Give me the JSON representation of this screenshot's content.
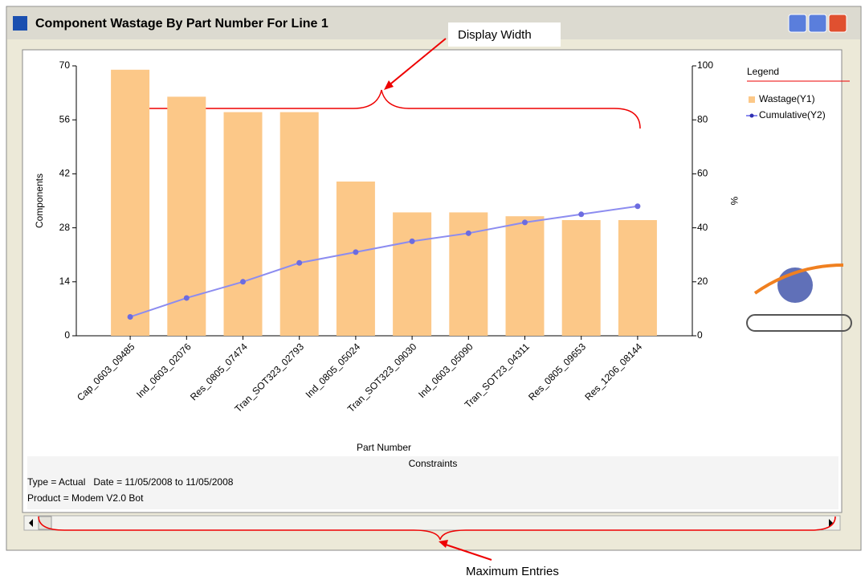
{
  "window": {
    "title": "Component Wastage By Part Number For Line 1"
  },
  "annotations": [
    "Display Width",
    "Maximum Entries"
  ],
  "constraints": {
    "title": "Constraints",
    "lines": [
      "Type = Actual   Date = 11/05/2008 to 11/05/2008",
      "Product = Modem V2.0 Bot"
    ]
  },
  "chart_data": {
    "type": "bar",
    "x_label": "Part Number",
    "y_label": "Components",
    "y2_label": "%",
    "legend_title": "Legend",
    "categories": [
      "Cap_0603_09485",
      "Ind_0603_02076",
      "Res_0805_07474",
      "Tran_SOT323_02793",
      "Ind_0805_05024",
      "Tran_SOT323_09030",
      "Ind_0603_05090",
      "Tran_SOT23_04311",
      "Res_0805_09653",
      "Res_1206_08144"
    ],
    "series": [
      {
        "name": "Wastage(Y1)",
        "type": "bar",
        "color": "#fcc888",
        "values": [
          69,
          62,
          58,
          58,
          40,
          32,
          32,
          31,
          30,
          30
        ]
      },
      {
        "name": "Cumulative(Y2)",
        "type": "line",
        "axis": "y2",
        "color": "#8c8cf0",
        "values": [
          7,
          14,
          20,
          27,
          31,
          35,
          38,
          42,
          45,
          48
        ]
      }
    ],
    "ylim": [
      0,
      70
    ],
    "yticks": [
      0,
      14,
      28,
      42,
      56,
      70
    ],
    "y2lim": [
      0,
      100
    ],
    "y2ticks": [
      0,
      20,
      40,
      60,
      80,
      100
    ],
    "legend": "right"
  }
}
